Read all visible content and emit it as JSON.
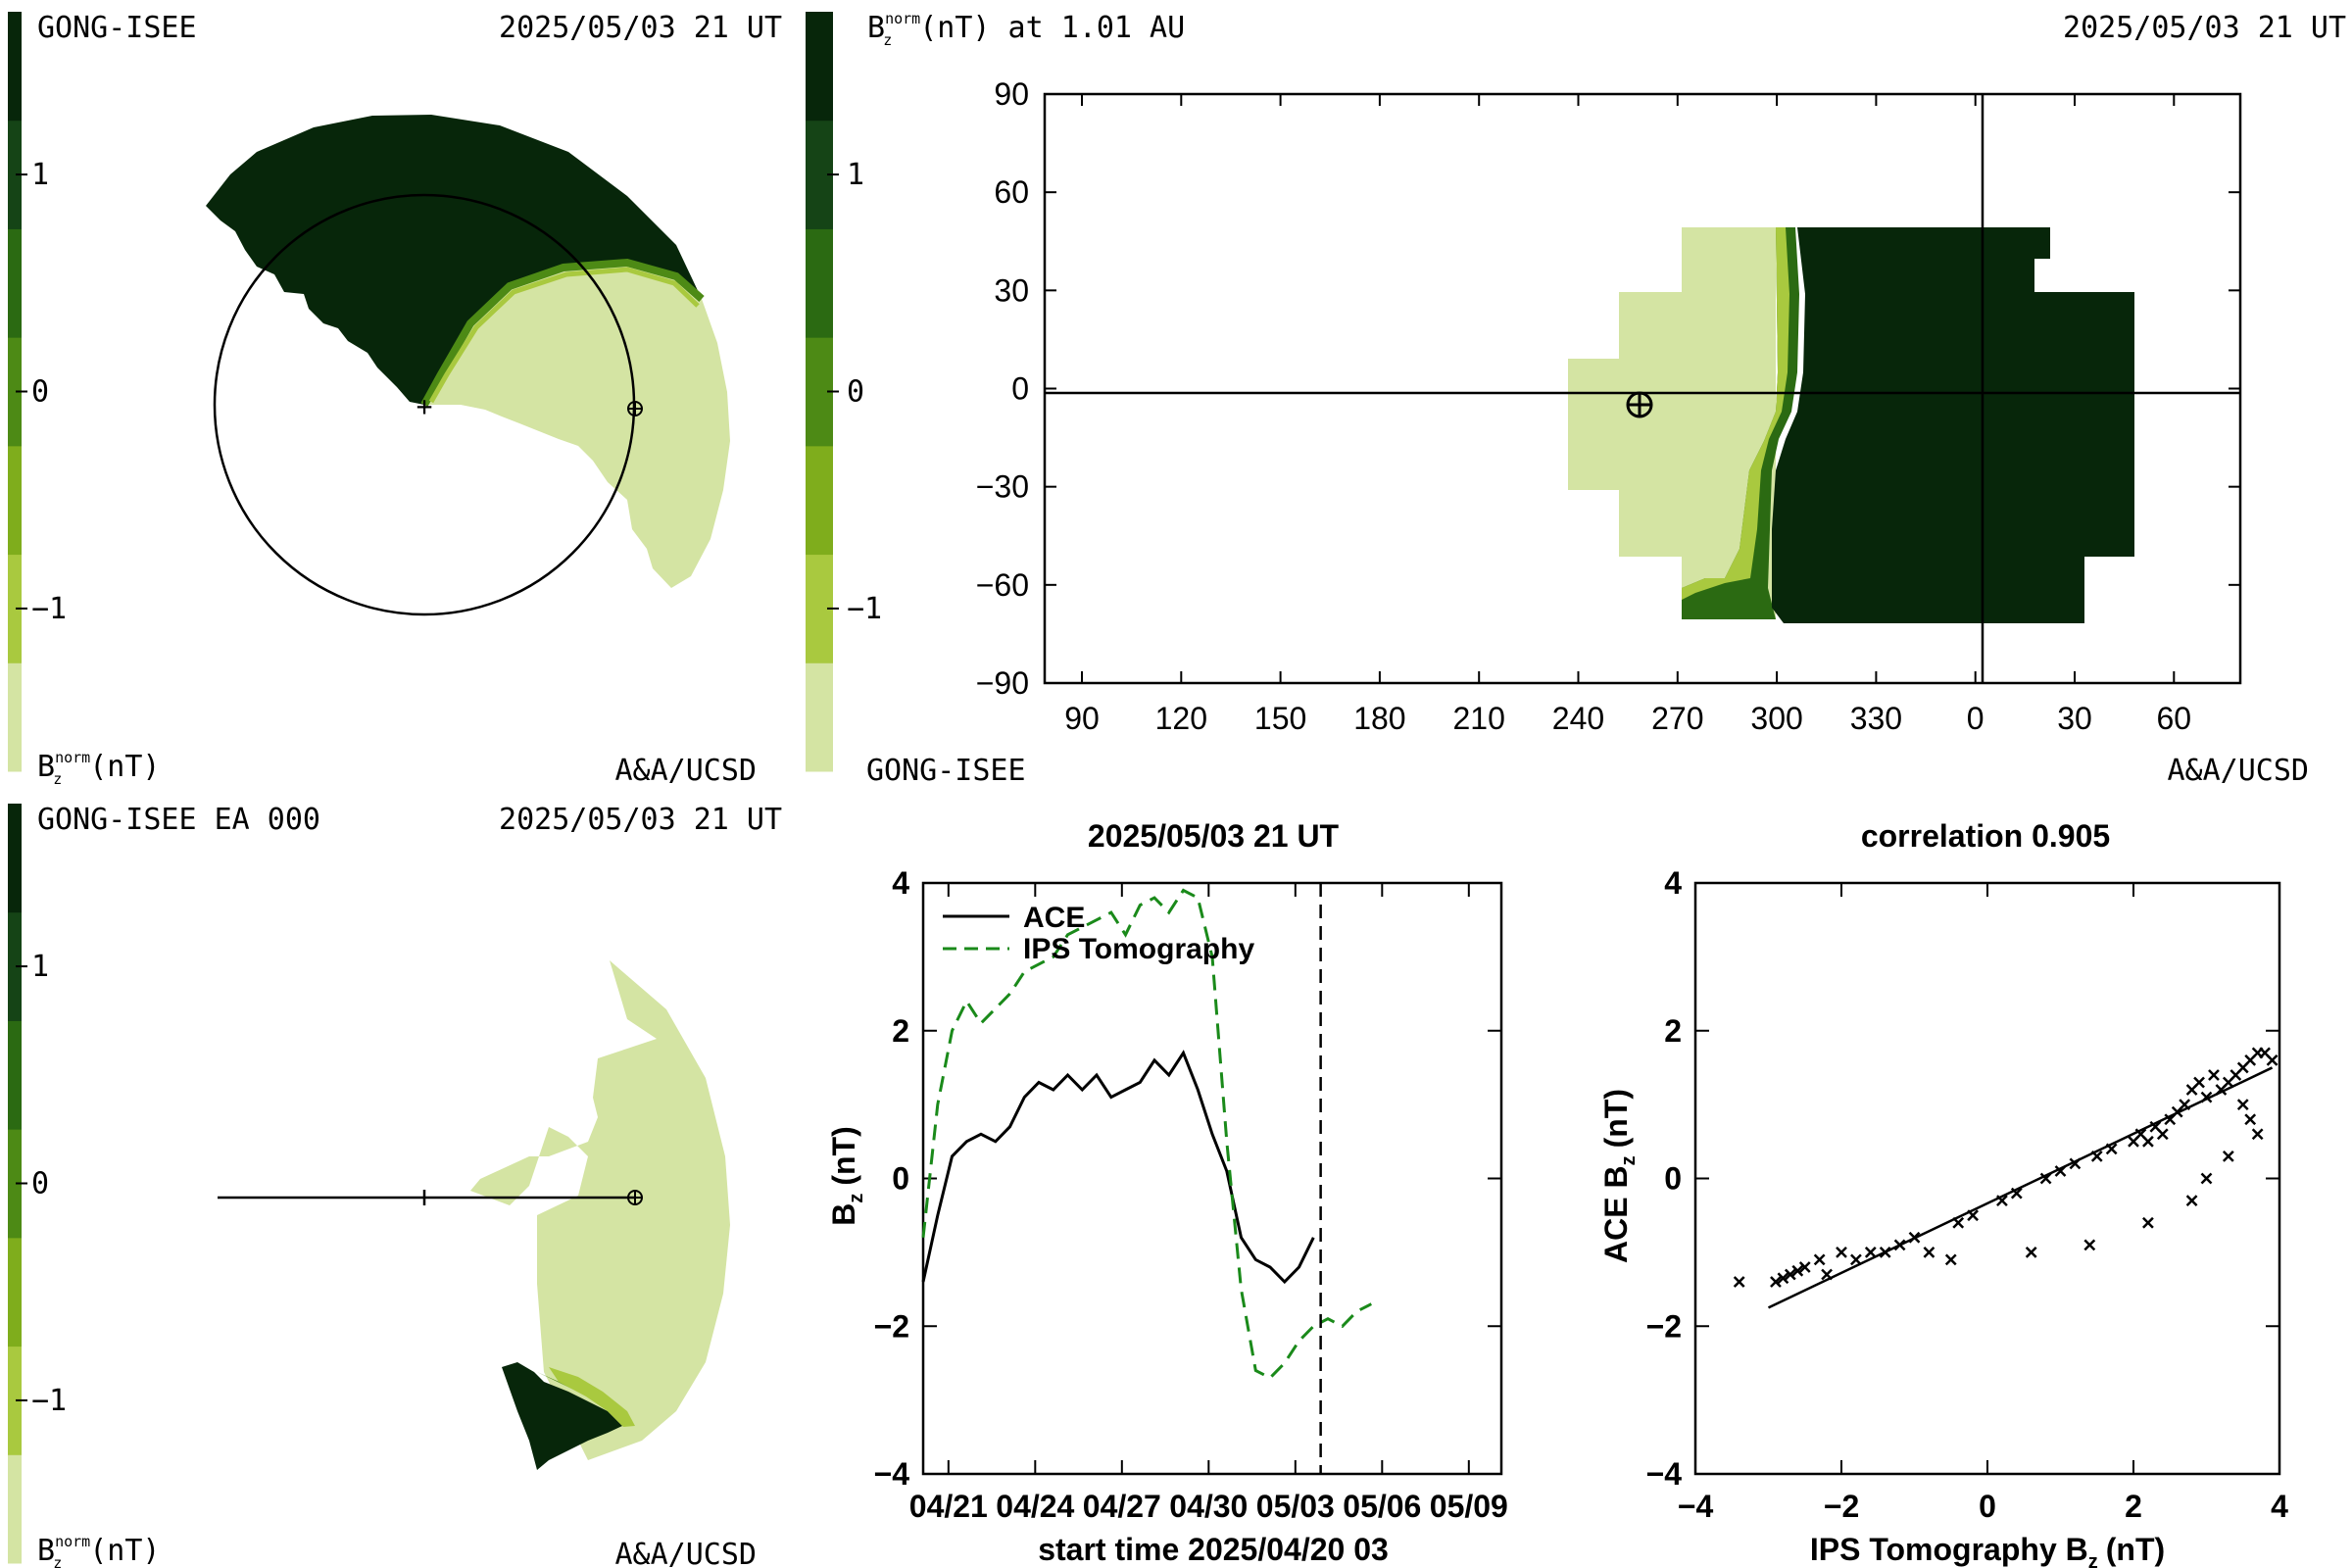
{
  "palette": [
    "#d4e4a3",
    "#a9c93f",
    "#7fad1c",
    "#4d8a15",
    "#2b6a12",
    "#154416",
    "#07260a"
  ],
  "colorbar": {
    "ticks": [
      "1",
      "0",
      "−1"
    ],
    "levels": [
      1,
      0,
      -1
    ]
  },
  "panel_tl": {
    "label_left": "GONG-ISEE",
    "label_right": "2025/05/03 21 UT",
    "unit_label": "B",
    "unit_sup": "norm",
    "unit_sub": "z",
    "unit_suffix": "(nT)",
    "credit": "A&A/UCSD"
  },
  "panel_tr": {
    "unit_label": "B",
    "unit_sup": "norm",
    "unit_sub": "z",
    "title_suffix": "(nT) at 1.01 AU",
    "date": "2025/05/03 21 UT",
    "label_left": "GONG-ISEE",
    "credit": "A&A/UCSD",
    "x_ticks": [
      "90",
      "120",
      "150",
      "180",
      "210",
      "240",
      "270",
      "300",
      "330",
      "0",
      "30",
      "60"
    ],
    "y_ticks": [
      "90",
      "60",
      "30",
      "0",
      "−30",
      "−60",
      "−90"
    ]
  },
  "panel_bl": {
    "label_left": "GONG-ISEE EA 000",
    "label_right": "2025/05/03 21 UT",
    "unit_label": "B",
    "unit_sup": "norm",
    "unit_sub": "z",
    "unit_suffix": "(nT)",
    "credit": "A&A/UCSD"
  },
  "chart_data": [
    {
      "type": "line",
      "title": "2025/05/03 21 UT",
      "xlabel": "start time 2025/04/20 03",
      "ylabel": "B",
      "ylabel_sub": "z",
      "ylabel_suffix": "(nT)",
      "x_tick_labels": [
        "04/21",
        "04/24",
        "04/27",
        "04/30",
        "05/03",
        "05/06",
        "05/09"
      ],
      "x_tick_days": [
        0.875,
        3.875,
        6.875,
        9.875,
        12.875,
        15.875,
        18.875
      ],
      "xlim": [
        0,
        20
      ],
      "ylim": [
        -4,
        4
      ],
      "y_ticks": [
        "4",
        "2",
        "0",
        "−2",
        "−4"
      ],
      "y_tick_values": [
        4,
        2,
        0,
        -2,
        -4
      ],
      "now_marker_day": 13.75,
      "series": [
        {
          "name": "ACE",
          "style": "solid",
          "color": "#000000",
          "x": [
            0,
            0.5,
            1,
            1.5,
            2,
            2.5,
            3,
            3.5,
            4,
            4.5,
            5,
            5.5,
            6,
            6.5,
            7,
            7.5,
            8,
            8.5,
            9,
            9.5,
            10,
            10.5,
            11,
            11.5,
            12,
            12.5,
            13,
            13.5
          ],
          "y": [
            -1.4,
            -0.5,
            0.3,
            0.5,
            0.6,
            0.5,
            0.7,
            1.1,
            1.3,
            1.2,
            1.4,
            1.2,
            1.4,
            1.1,
            1.2,
            1.3,
            1.6,
            1.4,
            1.7,
            1.2,
            0.6,
            0.1,
            -0.8,
            -1.1,
            -1.2,
            -1.4,
            -1.2,
            -0.8
          ]
        },
        {
          "name": "IPS Tomography",
          "style": "dashed",
          "color": "#1a8a1a",
          "x": [
            0,
            0.5,
            1,
            1.5,
            2,
            2.5,
            3,
            3.5,
            4,
            4.5,
            5,
            5.5,
            6,
            6.5,
            7,
            7.5,
            8,
            8.5,
            9,
            9.5,
            10,
            10.5,
            11,
            11.5,
            12,
            12.5,
            13,
            13.5,
            14,
            14.5,
            15,
            15.5
          ],
          "y": [
            -0.8,
            1.0,
            2.0,
            2.4,
            2.1,
            2.3,
            2.5,
            2.8,
            2.9,
            3.0,
            3.3,
            3.4,
            3.5,
            3.6,
            3.3,
            3.7,
            3.8,
            3.6,
            3.9,
            3.8,
            3.0,
            0.5,
            -1.5,
            -2.6,
            -2.7,
            -2.5,
            -2.2,
            -2.0,
            -1.9,
            -2.0,
            -1.8,
            -1.7
          ]
        }
      ]
    },
    {
      "type": "scatter",
      "title": "correlation 0.905",
      "xlabel": "IPS Tomography B",
      "xlabel_sub": "z",
      "xlabel_suffix": "(nT)",
      "ylabel": "ACE B",
      "ylabel_sub": "z",
      "ylabel_suffix": "(nT)",
      "xlim": [
        -4,
        4
      ],
      "ylim": [
        -4,
        4
      ],
      "x_ticks": [
        "−4",
        "−2",
        "0",
        "2",
        "4"
      ],
      "x_tick_values": [
        -4,
        -2,
        0,
        2,
        4
      ],
      "y_ticks": [
        "4",
        "2",
        "0",
        "−2",
        "−4"
      ],
      "y_tick_values": [
        4,
        2,
        0,
        -2,
        -4
      ],
      "fit_line": {
        "x": [
          -3.0,
          3.9
        ],
        "y": [
          -1.75,
          1.5
        ]
      },
      "points": [
        [
          -3.4,
          -1.4
        ],
        [
          -2.9,
          -1.4
        ],
        [
          -2.8,
          -1.35
        ],
        [
          -2.7,
          -1.3
        ],
        [
          -2.6,
          -1.25
        ],
        [
          -2.5,
          -1.2
        ],
        [
          -2.3,
          -1.1
        ],
        [
          -2.2,
          -1.3
        ],
        [
          -2.0,
          -1.0
        ],
        [
          -1.8,
          -1.1
        ],
        [
          -1.6,
          -1.0
        ],
        [
          -1.4,
          -1.0
        ],
        [
          -1.2,
          -0.9
        ],
        [
          -1.0,
          -0.8
        ],
        [
          -0.8,
          -1.0
        ],
        [
          -0.4,
          -0.6
        ],
        [
          -0.2,
          -0.5
        ],
        [
          0.2,
          -0.3
        ],
        [
          0.4,
          -0.2
        ],
        [
          0.8,
          0.0
        ],
        [
          1.0,
          0.1
        ],
        [
          1.2,
          0.2
        ],
        [
          1.5,
          0.3
        ],
        [
          1.7,
          0.4
        ],
        [
          2.0,
          0.5
        ],
        [
          2.1,
          0.6
        ],
        [
          2.2,
          0.5
        ],
        [
          2.3,
          0.7
        ],
        [
          2.4,
          0.6
        ],
        [
          2.5,
          0.8
        ],
        [
          2.6,
          0.9
        ],
        [
          2.7,
          1.0
        ],
        [
          2.8,
          1.2
        ],
        [
          2.9,
          1.3
        ],
        [
          3.0,
          1.1
        ],
        [
          3.1,
          1.4
        ],
        [
          3.2,
          1.2
        ],
        [
          3.3,
          1.3
        ],
        [
          3.4,
          1.4
        ],
        [
          3.5,
          1.5
        ],
        [
          3.6,
          1.6
        ],
        [
          3.7,
          1.7
        ],
        [
          3.8,
          1.7
        ],
        [
          3.9,
          1.6
        ],
        [
          3.6,
          0.8
        ],
        [
          3.3,
          0.3
        ],
        [
          3.0,
          0.0
        ],
        [
          2.2,
          -0.6
        ],
        [
          1.4,
          -0.9
        ],
        [
          0.6,
          -1.0
        ],
        [
          -0.5,
          -1.1
        ],
        [
          2.8,
          -0.3
        ],
        [
          3.5,
          1.0
        ],
        [
          3.7,
          0.6
        ]
      ]
    }
  ]
}
